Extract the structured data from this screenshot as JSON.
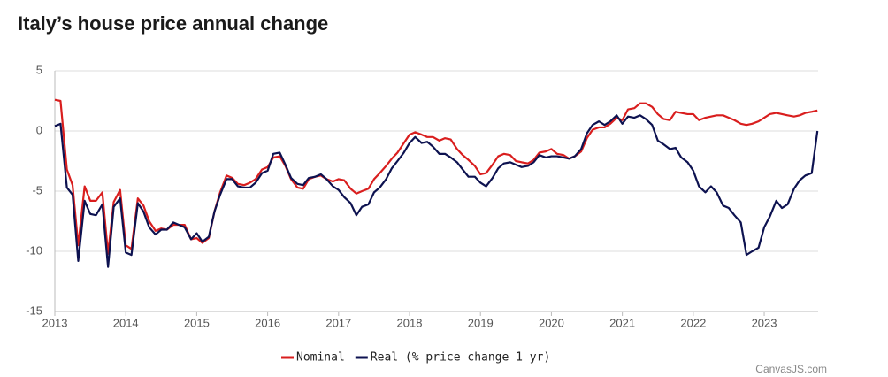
{
  "chart_data": {
    "type": "line",
    "title": "Italy’s house price annual change",
    "credit": "CanvasJS.com",
    "x": [
      2013.0,
      2013.08,
      2013.17,
      2013.25,
      2013.33,
      2013.42,
      2013.5,
      2013.58,
      2013.67,
      2013.75,
      2013.83,
      2013.92,
      2014.0,
      2014.08,
      2014.17,
      2014.25,
      2014.33,
      2014.42,
      2014.5,
      2014.58,
      2014.67,
      2014.75,
      2014.83,
      2014.92,
      2015.0,
      2015.08,
      2015.17,
      2015.25,
      2015.33,
      2015.42,
      2015.5,
      2015.58,
      2015.67,
      2015.75,
      2015.83,
      2015.92,
      2016.0,
      2016.08,
      2016.17,
      2016.25,
      2016.33,
      2016.42,
      2016.5,
      2016.58,
      2016.67,
      2016.75,
      2016.83,
      2016.92,
      2017.0,
      2017.08,
      2017.17,
      2017.25,
      2017.33,
      2017.42,
      2017.5,
      2017.58,
      2017.67,
      2017.75,
      2017.83,
      2017.92,
      2018.0,
      2018.08,
      2018.17,
      2018.25,
      2018.33,
      2018.42,
      2018.5,
      2018.58,
      2018.67,
      2018.75,
      2018.83,
      2018.92,
      2019.0,
      2019.08,
      2019.17,
      2019.25,
      2019.33,
      2019.42,
      2019.5,
      2019.58,
      2019.67,
      2019.75,
      2019.83,
      2019.92,
      2020.0,
      2020.08,
      2020.17,
      2020.25,
      2020.33,
      2020.42,
      2020.5,
      2020.58,
      2020.67,
      2020.75,
      2020.83,
      2020.92,
      2021.0,
      2021.08,
      2021.17,
      2021.25,
      2021.33,
      2021.42,
      2021.5,
      2021.58,
      2021.67,
      2021.75,
      2021.83,
      2021.92,
      2022.0,
      2022.08,
      2022.17,
      2022.25,
      2022.33,
      2022.42,
      2022.5,
      2022.58,
      2022.67,
      2022.75,
      2022.83,
      2022.92,
      2023.0,
      2023.08,
      2023.17,
      2023.25,
      2023.33,
      2023.42,
      2023.5,
      2023.58,
      2023.67,
      2023.75
    ],
    "series": [
      {
        "name": "Nominal",
        "color": "#d91e1e",
        "values": [
          2.6,
          2.5,
          -3.2,
          -4.5,
          -9.5,
          -4.6,
          -5.8,
          -5.8,
          -5.1,
          -10.2,
          -5.9,
          -4.9,
          -9.5,
          -9.8,
          -5.6,
          -6.2,
          -7.5,
          -8.3,
          -8.1,
          -8.2,
          -7.8,
          -7.8,
          -7.8,
          -9.0,
          -8.9,
          -9.3,
          -8.9,
          -6.7,
          -5.1,
          -3.7,
          -3.9,
          -4.4,
          -4.5,
          -4.3,
          -4.0,
          -3.2,
          -3.0,
          -2.2,
          -2.1,
          -2.9,
          -4.0,
          -4.7,
          -4.8,
          -4.0,
          -3.8,
          -3.7,
          -4.0,
          -4.2,
          -4.0,
          -4.1,
          -4.8,
          -5.2,
          -5.0,
          -4.8,
          -4.0,
          -3.5,
          -2.9,
          -2.3,
          -1.8,
          -1.0,
          -0.3,
          -0.1,
          -0.3,
          -0.5,
          -0.5,
          -0.8,
          -0.6,
          -0.7,
          -1.5,
          -2.0,
          -2.4,
          -2.9,
          -3.6,
          -3.5,
          -2.8,
          -2.1,
          -1.9,
          -2.0,
          -2.5,
          -2.6,
          -2.7,
          -2.4,
          -1.8,
          -1.7,
          -1.5,
          -1.9,
          -2.0,
          -2.3,
          -2.1,
          -1.7,
          -0.6,
          0.1,
          0.3,
          0.3,
          0.6,
          1.1,
          0.9,
          1.8,
          1.9,
          2.3,
          2.3,
          2.0,
          1.4,
          1.0,
          0.9,
          1.6,
          1.5,
          1.4,
          1.4,
          0.9,
          1.1,
          1.2,
          1.3,
          1.3,
          1.1,
          0.9,
          0.6,
          0.5,
          0.6,
          0.8,
          1.1,
          1.4,
          1.5,
          1.4,
          1.3,
          1.2,
          1.3,
          1.5,
          1.6,
          1.7
        ]
      },
      {
        "name": "Real (% price change 1 yr)",
        "color": "#0d1250",
        "values": [
          0.4,
          0.6,
          -4.7,
          -5.3,
          -10.8,
          -5.8,
          -6.9,
          -7.0,
          -6.1,
          -11.3,
          -6.3,
          -5.6,
          -10.1,
          -10.3,
          -6.0,
          -6.7,
          -8.0,
          -8.6,
          -8.2,
          -8.2,
          -7.6,
          -7.8,
          -8.0,
          -9.0,
          -8.5,
          -9.2,
          -8.8,
          -6.7,
          -5.3,
          -4.0,
          -4.0,
          -4.6,
          -4.7,
          -4.7,
          -4.3,
          -3.5,
          -3.3,
          -1.9,
          -1.8,
          -2.8,
          -3.9,
          -4.4,
          -4.5,
          -3.9,
          -3.8,
          -3.6,
          -4.0,
          -4.6,
          -4.9,
          -5.5,
          -6.0,
          -7.0,
          -6.3,
          -6.1,
          -5.1,
          -4.7,
          -4.0,
          -3.1,
          -2.5,
          -1.8,
          -1.0,
          -0.5,
          -1.0,
          -0.9,
          -1.3,
          -1.9,
          -1.9,
          -2.2,
          -2.6,
          -3.2,
          -3.8,
          -3.8,
          -4.3,
          -4.6,
          -3.9,
          -3.1,
          -2.7,
          -2.6,
          -2.8,
          -3.0,
          -2.9,
          -2.6,
          -2.0,
          -2.2,
          -2.1,
          -2.1,
          -2.2,
          -2.3,
          -2.1,
          -1.5,
          -0.2,
          0.5,
          0.8,
          0.5,
          0.8,
          1.3,
          0.6,
          1.2,
          1.1,
          1.3,
          1.0,
          0.5,
          -0.8,
          -1.1,
          -1.5,
          -1.4,
          -2.2,
          -2.6,
          -3.3,
          -4.6,
          -5.1,
          -4.6,
          -5.1,
          -6.2,
          -6.4,
          -7.0,
          -7.6,
          -10.3,
          -10.0,
          -9.7,
          -8.0,
          -7.1,
          -5.8,
          -6.4,
          -6.1,
          -4.8,
          -4.1,
          -3.7,
          -3.5,
          0.0
        ]
      }
    ],
    "xlim": [
      2013,
      2023.76
    ],
    "xticks": [
      2013,
      2014,
      2015,
      2016,
      2017,
      2018,
      2019,
      2020,
      2021,
      2022,
      2023
    ],
    "ylim": [
      -15,
      5
    ],
    "yticks": [
      -15,
      -10,
      -5,
      0,
      5
    ],
    "grid": true,
    "legend": "bottom"
  }
}
